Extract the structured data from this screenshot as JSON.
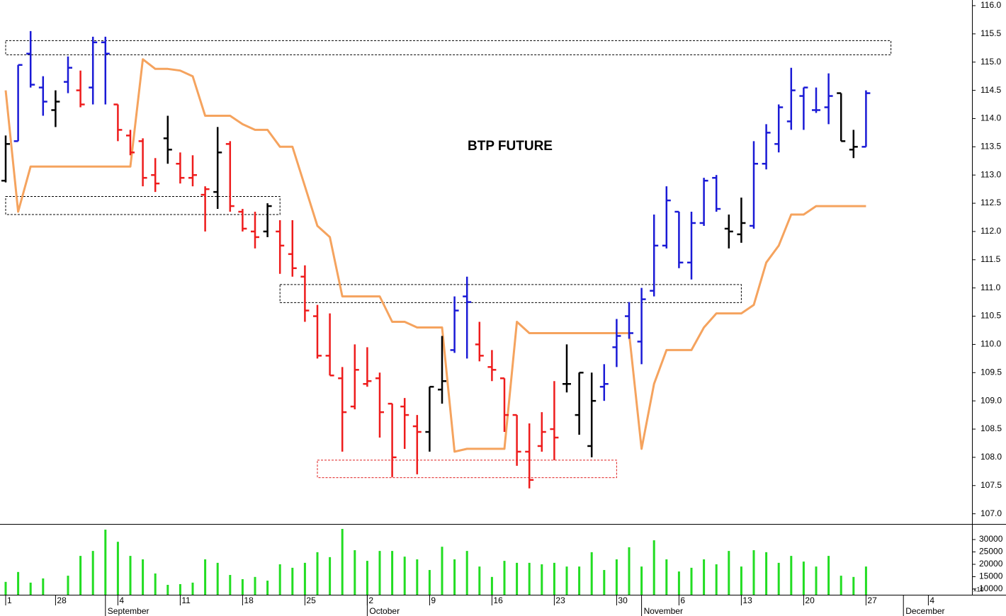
{
  "chart_data": {
    "type": "ohlc",
    "title": "BTP FUTURE",
    "categories": [
      "1",
      null,
      null,
      null,
      "28",
      null,
      null,
      null,
      null,
      "4",
      null,
      null,
      null,
      null,
      "11",
      null,
      null,
      null,
      null,
      "18",
      null,
      null,
      null,
      null,
      "25",
      null,
      null,
      null,
      null,
      "2",
      null,
      null,
      null,
      null,
      "9",
      null,
      null,
      null,
      null,
      "16",
      null,
      null,
      null,
      null,
      "23",
      null,
      null,
      null,
      null,
      "30",
      null,
      null,
      null,
      null,
      "6",
      null,
      null,
      null,
      null,
      "13",
      null,
      null,
      null,
      null,
      "20",
      null,
      null,
      null,
      null,
      "27",
      null,
      null,
      null,
      null,
      "4",
      null,
      null,
      null
    ],
    "months": [
      null,
      null,
      null,
      null,
      null,
      null,
      null,
      null,
      "September",
      null,
      null,
      null,
      null,
      null,
      null,
      null,
      null,
      null,
      null,
      null,
      null,
      null,
      null,
      null,
      null,
      null,
      null,
      null,
      null,
      "October",
      null,
      null,
      null,
      null,
      null,
      null,
      null,
      null,
      null,
      null,
      null,
      null,
      null,
      null,
      null,
      null,
      null,
      null,
      null,
      null,
      null,
      "November",
      null,
      null,
      null,
      null,
      null,
      null,
      null,
      null,
      null,
      null,
      null,
      null,
      null,
      null,
      null,
      null,
      null,
      null,
      null,
      null,
      "December",
      null,
      null,
      null,
      null
    ],
    "ylim": [
      106.82,
      116.1
    ],
    "yticks": [
      {
        "value": 107,
        "label": "107.0"
      },
      {
        "value": 107.5,
        "label": "107.5"
      },
      {
        "value": 108,
        "label": "108.0"
      },
      {
        "value": 108.5,
        "label": "108.5"
      },
      {
        "value": 109,
        "label": "109.0"
      },
      {
        "value": 109.5,
        "label": "109.5"
      },
      {
        "value": 110,
        "label": "110.0"
      },
      {
        "value": 110.5,
        "label": "110.5"
      },
      {
        "value": 111,
        "label": "111.0"
      },
      {
        "value": 111.5,
        "label": "111.5"
      },
      {
        "value": 112,
        "label": "112.0"
      },
      {
        "value": 112.5,
        "label": "112.5"
      },
      {
        "value": 113,
        "label": "113.0"
      },
      {
        "value": 113.5,
        "label": "113.5"
      },
      {
        "value": 114,
        "label": "114.0"
      },
      {
        "value": 114.5,
        "label": "114.5"
      },
      {
        "value": 115,
        "label": "115.0"
      },
      {
        "value": 115.5,
        "label": "115.5"
      },
      {
        "value": 116,
        "label": "116.0"
      }
    ],
    "ohlc": {
      "open": [
        112.9,
        113.6,
        115.15,
        114.55,
        114.15,
        114.65,
        114.5,
        114.55,
        115.35,
        114.25,
        113.7,
        113.6,
        113.0,
        113.65,
        113.2,
        112.95,
        112.65,
        112.7,
        113.55,
        112.35,
        112.0,
        112.0,
        112.0,
        111.6,
        111.2,
        110.5,
        109.8,
        109.4,
        108.9,
        109.3,
        109.4,
        108.95,
        108.9,
        108.55,
        108.45,
        109.2,
        109.9,
        110.85,
        110.0,
        109.6,
        109.4,
        108.75,
        108.1,
        108.2,
        108.5,
        109.3,
        108.75,
        108.2,
        109.25,
        109.95,
        110.5,
        110.05,
        110.95,
        111.75,
        112.35,
        111.45,
        112.15,
        112.95,
        112.05,
        111.95,
        112.1,
        113.2,
        113.55,
        113.95,
        114.4,
        114.15,
        114.2,
        114.45,
        113.45,
        113.5,
        null,
        null,
        null,
        null,
        null,
        null,
        null,
        null
      ],
      "high": [
        113.7,
        114.95,
        115.55,
        114.75,
        114.5,
        115.1,
        114.85,
        115.45,
        115.45,
        114.25,
        113.8,
        113.65,
        113.3,
        114.05,
        113.4,
        113.35,
        112.8,
        113.85,
        113.6,
        112.4,
        112.35,
        112.5,
        112.2,
        112.2,
        111.4,
        110.7,
        110.55,
        109.6,
        110.0,
        109.95,
        109.5,
        108.95,
        109.05,
        108.75,
        109.25,
        110.15,
        110.85,
        111.2,
        110.4,
        109.9,
        109.4,
        108.75,
        108.6,
        108.8,
        109.35,
        110.0,
        109.5,
        109.5,
        109.65,
        110.45,
        110.75,
        111.0,
        112.3,
        112.8,
        112.35,
        112.35,
        112.95,
        113.0,
        112.3,
        112.6,
        113.6,
        113.9,
        114.25,
        114.9,
        114.55,
        114.55,
        114.8,
        114.45,
        113.8,
        114.5,
        null,
        null,
        null,
        null,
        null,
        null,
        null,
        null
      ],
      "low": [
        112.87,
        113.6,
        114.55,
        114.05,
        113.85,
        114.45,
        114.2,
        114.25,
        114.25,
        113.6,
        113.35,
        112.8,
        112.7,
        113.2,
        112.85,
        112.8,
        112.0,
        112.4,
        112.35,
        112.0,
        111.7,
        111.9,
        111.25,
        111.2,
        110.4,
        109.75,
        109.45,
        108.1,
        108.85,
        109.25,
        108.35,
        107.65,
        108.15,
        107.7,
        108.1,
        108.95,
        109.85,
        109.75,
        109.7,
        109.35,
        108.45,
        107.85,
        107.45,
        108.1,
        107.95,
        109.15,
        108.4,
        108.0,
        109.0,
        109.6,
        110.1,
        109.65,
        110.85,
        111.7,
        111.35,
        111.15,
        112.1,
        112.35,
        111.7,
        111.8,
        112.05,
        113.1,
        113.4,
        113.8,
        113.8,
        114.1,
        113.9,
        113.6,
        113.3,
        113.5,
        null,
        null,
        null,
        null,
        null,
        null,
        null,
        null
      ],
      "close": [
        113.55,
        114.95,
        114.6,
        114.3,
        114.3,
        114.9,
        114.25,
        115.35,
        115.15,
        113.8,
        113.4,
        112.95,
        112.85,
        113.45,
        112.95,
        113.0,
        112.75,
        113.4,
        112.45,
        112.05,
        111.9,
        112.45,
        111.75,
        111.35,
        110.6,
        109.8,
        109.45,
        108.8,
        109.55,
        109.35,
        108.8,
        108.0,
        108.75,
        108.45,
        109.25,
        109.35,
        110.6,
        110.75,
        109.8,
        109.55,
        108.75,
        108.1,
        107.6,
        108.45,
        108.35,
        109.3,
        109.5,
        109.0,
        109.3,
        110.15,
        110.2,
        110.8,
        111.75,
        112.55,
        111.45,
        112.15,
        112.9,
        112.4,
        112.0,
        112.15,
        113.2,
        113.75,
        114.2,
        114.5,
        114.55,
        114.15,
        114.4,
        113.6,
        113.5,
        114.45,
        null,
        null,
        null,
        null,
        null,
        null,
        null,
        null
      ],
      "colors": [
        "#000000",
        "#1a1ad6",
        "#1a1ad6",
        "#1a1ad6",
        "#000000",
        "#1a1ad6",
        "#ee1c1c",
        "#1a1ad6",
        "#1a1ad6",
        "#ee1c1c",
        "#ee1c1c",
        "#ee1c1c",
        "#ee1c1c",
        "#000000",
        "#ee1c1c",
        "#ee1c1c",
        "#ee1c1c",
        "#000000",
        "#ee1c1c",
        "#ee1c1c",
        "#ee1c1c",
        "#000000",
        "#ee1c1c",
        "#ee1c1c",
        "#ee1c1c",
        "#ee1c1c",
        "#ee1c1c",
        "#ee1c1c",
        "#ee1c1c",
        "#ee1c1c",
        "#ee1c1c",
        "#ee1c1c",
        "#ee1c1c",
        "#ee1c1c",
        "#000000",
        "#000000",
        "#1a1ad6",
        "#1a1ad6",
        "#ee1c1c",
        "#ee1c1c",
        "#ee1c1c",
        "#ee1c1c",
        "#ee1c1c",
        "#ee1c1c",
        "#ee1c1c",
        "#000000",
        "#000000",
        "#000000",
        "#1a1ad6",
        "#1a1ad6",
        "#1a1ad6",
        "#1a1ad6",
        "#1a1ad6",
        "#1a1ad6",
        "#1a1ad6",
        "#1a1ad6",
        "#1a1ad6",
        "#1a1ad6",
        "#000000",
        "#000000",
        "#1a1ad6",
        "#1a1ad6",
        "#1a1ad6",
        "#1a1ad6",
        "#1a1ad6",
        "#1a1ad6",
        "#1a1ad6",
        "#000000",
        "#000000",
        "#1a1ad6",
        null,
        null,
        null,
        null,
        null,
        null,
        null,
        null
      ]
    },
    "stop": {
      "color": "#f5a35e",
      "values": [
        114.5,
        112.35,
        113.15,
        113.15,
        113.15,
        113.15,
        113.15,
        113.15,
        113.15,
        113.15,
        113.15,
        115.05,
        114.88,
        114.88,
        114.85,
        114.75,
        114.05,
        114.05,
        114.05,
        113.9,
        113.8,
        113.8,
        113.5,
        113.5,
        112.8,
        112.1,
        111.9,
        110.85,
        110.85,
        110.85,
        110.85,
        110.4,
        110.4,
        110.3,
        110.3,
        110.3,
        108.1,
        108.15,
        108.15,
        108.15,
        108.15,
        110.4,
        110.2,
        110.2,
        110.2,
        110.2,
        110.2,
        110.2,
        110.2,
        110.2,
        110.2,
        108.15,
        109.3,
        109.9,
        109.9,
        109.9,
        110.3,
        110.55,
        110.55,
        110.55,
        110.7,
        111.45,
        111.75,
        112.3,
        112.3,
        112.45,
        112.45,
        112.45,
        112.45,
        112.45,
        null,
        null,
        null,
        null,
        null,
        null,
        null,
        null
      ]
    },
    "zones": [
      {
        "start": 0,
        "end": 71,
        "low": 115.13,
        "high": 115.38,
        "color": "#000000"
      },
      {
        "start": 0,
        "end": 22,
        "low": 112.3,
        "high": 112.62,
        "color": "#000000"
      },
      {
        "start": 22,
        "end": 59,
        "low": 110.74,
        "high": 111.06,
        "color": "#000000"
      },
      {
        "start": 25,
        "end": 49,
        "low": 107.64,
        "high": 107.95,
        "color": "#e02020"
      }
    ],
    "volume": {
      "type": "bar",
      "color": "#22dd22",
      "ylim": [
        7700,
        36300
      ],
      "yticks": [
        10000,
        15000,
        20000,
        25000,
        30000
      ],
      "note": "x10",
      "values": [
        12900,
        16900,
        12600,
        14300,
        null,
        15400,
        23400,
        25400,
        34000,
        29100,
        23400,
        22000,
        16300,
        11700,
        12000,
        12600,
        22000,
        20600,
        15700,
        14000,
        14900,
        13400,
        20000,
        18600,
        20600,
        24900,
        22900,
        34300,
        25700,
        21400,
        25400,
        25400,
        23100,
        22000,
        17700,
        27100,
        22000,
        25400,
        19100,
        14900,
        21400,
        20600,
        20600,
        20000,
        20600,
        19100,
        19100,
        24900,
        17700,
        22000,
        26900,
        19100,
        29700,
        22000,
        17100,
        18600,
        22000,
        20000,
        25400,
        19100,
        25700,
        24900,
        20600,
        23400,
        21100,
        19100,
        23400,
        15400,
        14900,
        19100,
        null,
        null,
        null,
        null,
        null,
        null,
        null,
        null
      ]
    }
  }
}
